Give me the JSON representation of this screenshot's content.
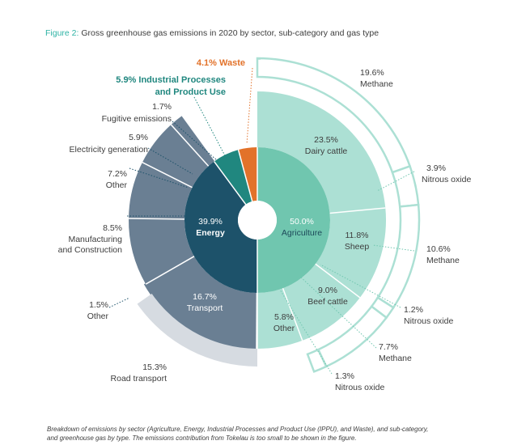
{
  "figure": {
    "label": "Figure 2:",
    "title": "Gross greenhouse gas emissions in 2020 by sector, sub-category and gas type",
    "caption_line1": "Breakdown of emissions by sector (Agriculture, Energy, Industrial Processes and Product Use (IPPU), and Waste), and sub-category,",
    "caption_line2": "and greenhouse gas by type. The emissions contribution from Tokelau is too small to be shown in the figure."
  },
  "colors": {
    "agriculture": "#70c6af",
    "agriculture_sub": "#ace0d4",
    "energy": "#1d526a",
    "energy_sub": "#6a7f93",
    "ippu": "#20877f",
    "waste": "#e2722a",
    "road_transport": "#d6dbe1",
    "label_teal": "#20877f",
    "label_orange": "#e2722a",
    "title_accent": "#2fb3a5"
  },
  "chart_data": {
    "type": "sunburst",
    "title": "",
    "sectors": [
      {
        "name": "Agriculture",
        "value": 50.0,
        "label": "50.0%"
      },
      {
        "name": "Energy",
        "value": 39.9,
        "label": "39.9%"
      },
      {
        "name": "Industrial Processes and Product Use",
        "value": 5.9,
        "label": "5.9% Industrial Processes and Product Use"
      },
      {
        "name": "Waste",
        "value": 4.1,
        "label": "4.1% Waste"
      }
    ],
    "subcategories": [
      {
        "sector": "Agriculture",
        "name": "Dairy cattle",
        "value": 23.5,
        "pct": "23.5%"
      },
      {
        "sector": "Agriculture",
        "name": "Sheep",
        "value": 11.8,
        "pct": "11.8%"
      },
      {
        "sector": "Agriculture",
        "name": "Beef cattle",
        "value": 9.0,
        "pct": "9.0%"
      },
      {
        "sector": "Agriculture",
        "name": "Other",
        "value": 5.8,
        "pct": "5.8%"
      },
      {
        "sector": "Energy",
        "name": "Transport",
        "value": 16.7,
        "pct": "16.7%"
      },
      {
        "sector": "Energy",
        "name": "Manufacturing and Construction",
        "value": 8.5,
        "pct": "8.5%"
      },
      {
        "sector": "Energy",
        "name": "Other",
        "value": 7.2,
        "pct": "7.2%"
      },
      {
        "sector": "Energy",
        "name": "Electricity generation",
        "value": 5.9,
        "pct": "5.9%"
      },
      {
        "sector": "Energy",
        "name": "Fugitive emissions",
        "value": 1.7,
        "pct": "1.7%"
      }
    ],
    "gases": [
      {
        "subcategory": "Dairy cattle",
        "name": "Methane",
        "value": 19.6,
        "pct": "19.6%"
      },
      {
        "subcategory": "Dairy cattle",
        "name": "Nitrous oxide",
        "value": 3.9,
        "pct": "3.9%"
      },
      {
        "subcategory": "Sheep",
        "name": "Methane",
        "value": 10.6,
        "pct": "10.6%"
      },
      {
        "subcategory": "Sheep",
        "name": "Nitrous oxide",
        "value": 1.2,
        "pct": "1.2%"
      },
      {
        "subcategory": "Beef cattle",
        "name": "Methane",
        "value": 7.7,
        "pct": "7.7%"
      },
      {
        "subcategory": "Beef cattle",
        "name": "Nitrous oxide",
        "value": 1.3,
        "pct": "1.3%"
      }
    ],
    "transport_split": [
      {
        "name": "Road transport",
        "value": 15.3,
        "pct": "15.3%"
      },
      {
        "name": "Other",
        "value": 1.5,
        "pct": "1.5%"
      }
    ]
  }
}
